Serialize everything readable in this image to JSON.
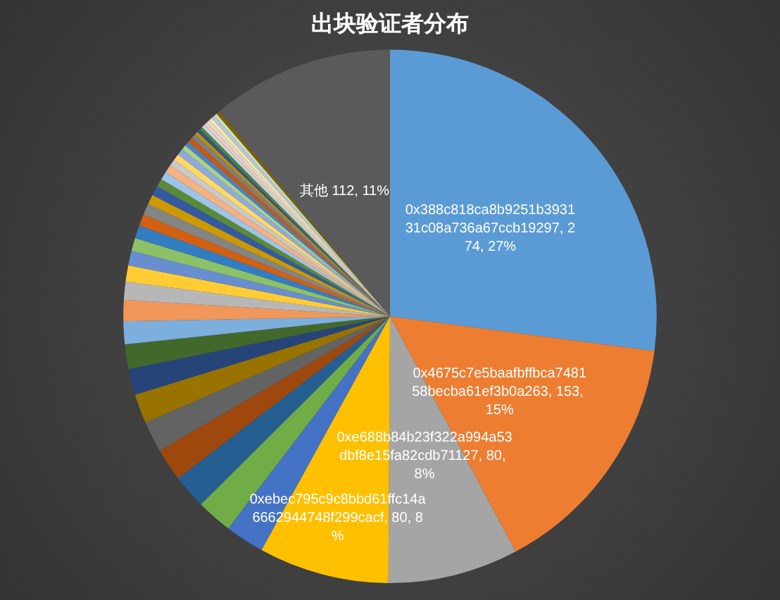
{
  "chart_data": {
    "type": "pie",
    "title": "出块验证者分布",
    "categories": [
      "0x388c818ca8b9251b393131c08a736a67ccb19297",
      "0x4675c7e5baafbffbca748158becba61ef3b0a263",
      "0xe688b84b23f322a994a53dbf8e15fa82cdb71127",
      "0xebec795c9c8bbd61ffc14a6662944748f299cacf",
      null,
      null,
      null,
      null,
      null,
      null,
      null,
      null,
      null,
      null,
      null,
      null,
      null,
      null,
      null,
      null,
      null,
      null,
      null,
      null,
      null,
      null,
      null,
      null,
      null,
      null,
      null,
      null,
      null,
      null,
      null,
      null,
      null,
      null,
      null,
      null,
      null,
      null,
      null,
      "其他"
    ],
    "values": [
      274,
      153,
      80,
      80,
      24,
      22,
      21,
      20,
      19,
      18,
      16,
      15,
      14,
      13,
      11,
      10,
      9,
      8,
      8,
      7,
      7,
      6,
      6,
      5,
      5,
      5,
      4,
      4,
      4,
      3,
      3,
      3,
      3,
      2,
      2,
      2,
      2,
      2,
      2,
      2,
      2,
      2,
      2,
      112
    ],
    "colors": [
      "#5b9bd5",
      "#ed7d31",
      "#a5a5a5",
      "#ffc000",
      "#4472c4",
      "#70ad47",
      "#255e91",
      "#9e480e",
      "#636363",
      "#997300",
      "#264478",
      "#43682b",
      "#7cafdd",
      "#f1975a",
      "#b7b7b7",
      "#ffcd33",
      "#698ed0",
      "#8cc168",
      "#327dc2",
      "#d26012",
      "#848484",
      "#cc9a00",
      "#335aa1",
      "#5a8a39",
      "#9dc3e6",
      "#f4b183",
      "#c9c9c9",
      "#ffd966",
      "#8faadc",
      "#a9d18e",
      "#4f81bd",
      "#c55a11",
      "#7f7f7f",
      "#bf9000",
      "#2f5597",
      "#548235",
      "#bdd7ee",
      "#f8cbad",
      "#dbdbdb",
      "#ffe699",
      "#b4c7e7",
      "#c5e0b4",
      "#806000",
      "#5a5a5a"
    ],
    "value_labels": [
      ", 274, 27%",
      ", 153, 15%",
      ", 80, 8%",
      ", 80, 8%",
      null,
      null,
      null,
      null,
      null,
      null,
      null,
      null,
      null,
      null,
      null,
      null,
      null,
      null,
      null,
      null,
      null,
      null,
      null,
      null,
      null,
      null,
      null,
      null,
      null,
      null,
      null,
      null,
      null,
      null,
      null,
      null,
      null,
      null,
      null,
      null,
      null,
      null,
      null,
      " 112, 11%"
    ],
    "legend": false
  }
}
